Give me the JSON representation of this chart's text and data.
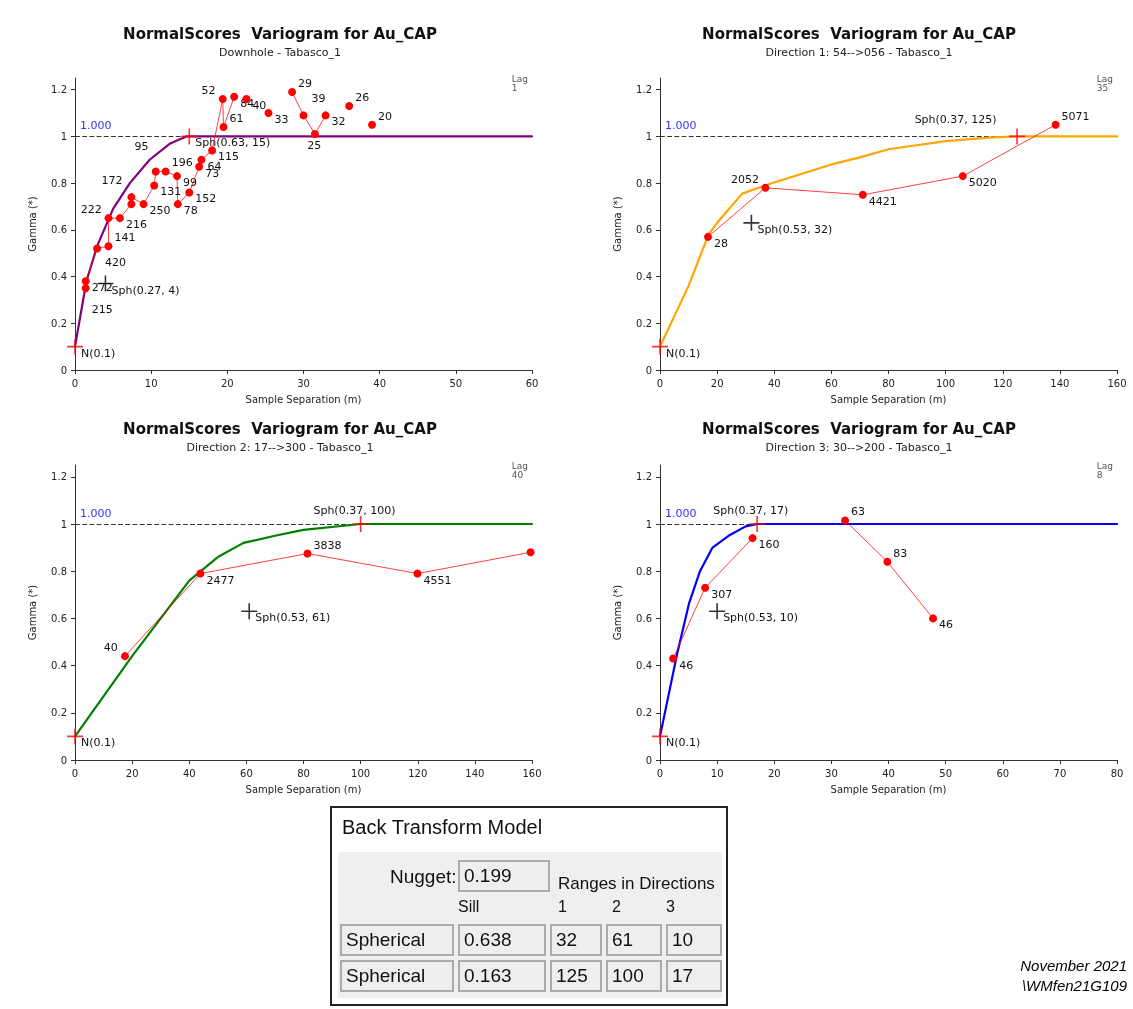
{
  "chart_data": [
    {
      "type": "line",
      "title": "NormalScores  Variogram for Au_CAP",
      "subtitle": "Downhole - Tabasco_1",
      "xlabel": "Sample Separation (m)",
      "ylabel": "Gamma (*)",
      "xlim": [
        0,
        60
      ],
      "xticks": [
        0,
        10,
        20,
        30,
        40,
        50,
        60
      ],
      "ylim": [
        0,
        1.25
      ],
      "yticks": [
        0,
        0.2,
        0.4,
        0.6,
        0.8,
        1.0,
        1.2
      ],
      "series": [
        {
          "type": "line",
          "color": "#ff0000",
          "marker": "circle",
          "x": [
            1.4,
            1.4,
            2.9,
            4.4,
            4.4,
            5.9,
            7.4,
            7.4,
            9.0,
            10.4,
            10.6,
            11.9,
            13.4,
            13.5,
            15.0,
            16.3,
            16.6,
            18.0,
            19.4,
            19.5,
            20.9,
            21.7,
            22.5,
            24.0,
            25.4,
            27.0,
            28.5,
            30.0,
            31.5,
            32.9,
            34.5,
            36.0,
            37.5,
            39.0
          ],
          "values": [
            0.35,
            0.38,
            0.52,
            0.53,
            0.65,
            0.65,
            0.71,
            0.74,
            0.71,
            0.79,
            0.85,
            0.85,
            0.83,
            0.71,
            0.76,
            0.87,
            0.9,
            0.94,
            1.16,
            1.04,
            1.17,
            null,
            1.16,
            null,
            1.1,
            null,
            1.19,
            1.09,
            1.01,
            1.09,
            null,
            1.13,
            null,
            1.05
          ]
        },
        {
          "type": "line",
          "color": "#800080",
          "marker": "none",
          "x": [
            0,
            1.5,
            2.9,
            5.0,
            7.2,
            9.8,
            12.5,
            14.6,
            15,
            60
          ],
          "values": [
            0.1,
            0.38,
            0.53,
            0.69,
            0.8,
            0.9,
            0.97,
            1.0,
            1.0,
            1.0
          ]
        },
        {
          "type": "scatter",
          "color": "#ff0000",
          "marker": "cross",
          "x": [
            0,
            15
          ],
          "values": [
            0.1,
            1.0
          ]
        },
        {
          "type": "scatter",
          "color": "#000000",
          "marker": "cross",
          "x": [
            4
          ],
          "values": [
            0.37
          ]
        }
      ],
      "ref_lines": [
        {
          "axis": "y",
          "value": 1.0,
          "label": "1.000",
          "color": "#333333",
          "line_style": "dashed"
        }
      ],
      "annotations": [
        "Lag\n1",
        {
          "text": "N(0.1)",
          "x": 0,
          "y": 0.1
        },
        {
          "text": "Sph(0.27, 4)",
          "x": 4,
          "y": 0.37
        },
        {
          "text": "Sph(0.63, 15)",
          "x": 15,
          "y": 1.0
        },
        {
          "text": "215",
          "x": 1.4,
          "y": 0.35
        },
        {
          "text": "272",
          "x": 1.4,
          "y": 0.38
        },
        {
          "text": "420",
          "x": 2.9,
          "y": 0.52
        },
        {
          "text": "141",
          "x": 4.4,
          "y": 0.53
        },
        {
          "text": "222",
          "x": 4.4,
          "y": 0.65
        },
        {
          "text": "216",
          "x": 5.9,
          "y": 0.65
        },
        {
          "text": "172",
          "x": 7.4,
          "y": 0.74
        },
        {
          "text": "250",
          "x": 9.0,
          "y": 0.71
        },
        {
          "text": "131",
          "x": 10.4,
          "y": 0.79
        },
        {
          "text": "95",
          "x": 10.6,
          "y": 0.85
        },
        {
          "text": "196",
          "x": 11.9,
          "y": 0.85
        },
        {
          "text": "99",
          "x": 13.4,
          "y": 0.83
        },
        {
          "text": "78",
          "x": 13.5,
          "y": 0.71
        },
        {
          "text": "152",
          "x": 15.0,
          "y": 0.76
        },
        {
          "text": "73",
          "x": 16.3,
          "y": 0.87
        },
        {
          "text": "64",
          "x": 16.6,
          "y": 0.9
        },
        {
          "text": "115",
          "x": 18.0,
          "y": 0.94
        },
        {
          "text": "52",
          "x": 19.4,
          "y": 1.16
        },
        {
          "text": "61",
          "x": 19.5,
          "y": 1.04
        },
        {
          "text": "84",
          "x": 20.9,
          "y": 1.17
        },
        {
          "text": "40",
          "x": 22.5,
          "y": 1.16
        },
        {
          "text": "33",
          "x": 25.4,
          "y": 1.1
        },
        {
          "text": "29",
          "x": 28.5,
          "y": 1.19
        },
        {
          "text": "39",
          "x": 30.0,
          "y": 1.09
        },
        {
          "text": "25",
          "x": 31.5,
          "y": 1.01
        },
        {
          "text": "32",
          "x": 32.9,
          "y": 1.09
        },
        {
          "text": "26",
          "x": 36.0,
          "y": 1.13
        },
        {
          "text": "20",
          "x": 39.0,
          "y": 1.05
        }
      ]
    },
    {
      "type": "line",
      "title": "NormalScores  Variogram for Au_CAP",
      "subtitle": "Direction 1: 54-->056 - Tabasco_1",
      "xlabel": "Sample Separation (m)",
      "ylabel": "Gamma (*)",
      "xlim": [
        0,
        160
      ],
      "xticks": [
        0,
        20,
        40,
        60,
        80,
        100,
        120,
        140,
        160
      ],
      "ylim": [
        0,
        1.25
      ],
      "yticks": [
        0,
        0.2,
        0.4,
        0.6,
        0.8,
        1.0,
        1.2
      ],
      "series": [
        {
          "type": "line",
          "color": "#ff0000",
          "marker": "circle",
          "x": [
            16.8,
            36.9,
            71.0,
            106.0,
            138.5
          ],
          "values": [
            0.57,
            0.78,
            0.75,
            0.83,
            1.05
          ]
        },
        {
          "type": "line",
          "color": "#ffa500",
          "marker": "none",
          "x": [
            0,
            10,
            17,
            20,
            28.8,
            38,
            60,
            70,
            80,
            100,
            115,
            125,
            160
          ],
          "values": [
            0.1,
            0.36,
            0.58,
            0.63,
            0.755,
            0.795,
            0.88,
            0.91,
            0.945,
            0.98,
            0.995,
            1.0,
            1.0
          ]
        },
        {
          "type": "scatter",
          "color": "#ff0000",
          "marker": "cross",
          "x": [
            0,
            125
          ],
          "values": [
            0.1,
            1.0
          ]
        },
        {
          "type": "scatter",
          "color": "#000000",
          "marker": "cross",
          "x": [
            32
          ],
          "values": [
            0.63
          ]
        }
      ],
      "ref_lines": [
        {
          "axis": "y",
          "value": 1.0,
          "label": "1.000",
          "color": "#333333",
          "line_style": "dashed"
        }
      ],
      "annotations": [
        "Lag\n35",
        {
          "text": "N(0.1)",
          "x": 0,
          "y": 0.1
        },
        {
          "text": "Sph(0.53, 32)",
          "x": 32,
          "y": 0.63
        },
        {
          "text": "Sph(0.37, 125)",
          "x": 125,
          "y": 1.0
        },
        {
          "text": "28",
          "x": 16.8,
          "y": 0.57
        },
        {
          "text": "2052",
          "x": 36.9,
          "y": 0.78
        },
        {
          "text": "4421",
          "x": 71.0,
          "y": 0.75
        },
        {
          "text": "5020",
          "x": 106.0,
          "y": 0.83
        },
        {
          "text": "5071",
          "x": 138.5,
          "y": 1.05
        }
      ]
    },
    {
      "type": "line",
      "title": "NormalScores  Variogram for Au_CAP",
      "subtitle": "Direction 2: 17-->300 - Tabasco_1",
      "xlabel": "Sample Separation (m)",
      "ylabel": "Gamma (*)",
      "xlim": [
        0,
        160
      ],
      "xticks": [
        0,
        20,
        40,
        60,
        80,
        100,
        120,
        140,
        160
      ],
      "ylim": [
        0,
        1.25
      ],
      "yticks": [
        0,
        0.2,
        0.4,
        0.6,
        0.8,
        1.0,
        1.2
      ],
      "series": [
        {
          "type": "line",
          "color": "#ff0000",
          "marker": "circle",
          "x": [
            17.5,
            43.9,
            81.4,
            119.9,
            159.5
          ],
          "values": [
            0.44,
            0.79,
            0.875,
            0.79,
            0.88
          ]
        },
        {
          "type": "line",
          "color": "#008000",
          "marker": "none",
          "x": [
            0,
            20,
            40,
            50,
            59,
            70,
            80,
            100,
            160
          ],
          "values": [
            0.1,
            0.44,
            0.76,
            0.86,
            0.92,
            0.95,
            0.975,
            1.0,
            1.0
          ]
        },
        {
          "type": "scatter",
          "color": "#ff0000",
          "marker": "cross",
          "x": [
            0,
            100
          ],
          "values": [
            0.1,
            1.0
          ]
        },
        {
          "type": "scatter",
          "color": "#000000",
          "marker": "cross",
          "x": [
            61
          ],
          "values": [
            0.63
          ]
        }
      ],
      "ref_lines": [
        {
          "axis": "y",
          "value": 1.0,
          "label": "1.000",
          "color": "#333333",
          "line_style": "dashed"
        }
      ],
      "annotations": [
        "Lag\n40",
        {
          "text": "N(0.1)",
          "x": 0,
          "y": 0.1
        },
        {
          "text": "Sph(0.53, 61)",
          "x": 61,
          "y": 0.63
        },
        {
          "text": "Sph(0.37, 100)",
          "x": 100,
          "y": 1.0
        },
        {
          "text": "40",
          "x": 17.5,
          "y": 0.44
        },
        {
          "text": "2477",
          "x": 43.9,
          "y": 0.79
        },
        {
          "text": "3838",
          "x": 81.4,
          "y": 0.875
        },
        {
          "text": "4551",
          "x": 119.9,
          "y": 0.79
        }
      ]
    },
    {
      "type": "line",
      "title": "NormalScores  Variogram for Au_CAP",
      "subtitle": "Direction 3: 30-->200 - Tabasco_1",
      "xlabel": "Sample Separation (m)",
      "ylabel": "Gamma (*)",
      "xlim": [
        0,
        80
      ],
      "xticks": [
        0,
        10,
        20,
        30,
        40,
        50,
        60,
        70,
        80
      ],
      "ylim": [
        0,
        1.25
      ],
      "yticks": [
        0,
        0.2,
        0.4,
        0.6,
        0.8,
        1.0,
        1.2
      ],
      "series": [
        {
          "type": "line",
          "color": "#ff0000",
          "marker": "circle",
          "x": [
            2.3,
            7.9,
            16.2,
            24,
            32.4,
            39.8,
            47.8
          ],
          "values": [
            0.43,
            0.73,
            0.94,
            null,
            1.015,
            0.84,
            0.6
          ]
        },
        {
          "type": "line",
          "color": "#0000ff",
          "marker": "none",
          "x": [
            0,
            3,
            5.1,
            7,
            9.2,
            12,
            15,
            17,
            80
          ],
          "values": [
            0.1,
            0.45,
            0.665,
            0.8,
            0.9,
            0.95,
            0.99,
            1.0,
            1.0
          ]
        },
        {
          "type": "scatter",
          "color": "#ff0000",
          "marker": "cross",
          "x": [
            0,
            17
          ],
          "values": [
            0.1,
            1.0
          ]
        },
        {
          "type": "scatter",
          "color": "#000000",
          "marker": "cross",
          "x": [
            10
          ],
          "values": [
            0.63
          ]
        }
      ],
      "ref_lines": [
        {
          "axis": "y",
          "value": 1.0,
          "label": "1.000",
          "color": "#333333",
          "line_style": "dashed"
        }
      ],
      "annotations": [
        "Lag\n8",
        {
          "text": "N(0.1)",
          "x": 0,
          "y": 0.1
        },
        {
          "text": "Sph(0.53, 10)",
          "x": 10,
          "y": 0.63
        },
        {
          "text": "Sph(0.37, 17)",
          "x": 17,
          "y": 1.0
        },
        {
          "text": "46",
          "x": 2.3,
          "y": 0.43
        },
        {
          "text": "307",
          "x": 7.9,
          "y": 0.73
        },
        {
          "text": "160",
          "x": 16.2,
          "y": 0.94
        },
        {
          "text": "63",
          "x": 32.4,
          "y": 1.015
        },
        {
          "text": "83",
          "x": 39.8,
          "y": 0.84
        },
        {
          "text": "46",
          "x": 47.8,
          "y": 0.6
        }
      ]
    },
    {
      "type": "other",
      "title": "Back Transform Model",
      "annotations": [
        "Nugget:",
        "0.199",
        "Ranges in Directions",
        "Sill",
        "1",
        "2",
        "3",
        "Spherical",
        "0.638",
        "32",
        "61",
        "10",
        "Spherical",
        "0.163",
        "125",
        "100",
        "17",
        "November 2021",
        "\\WMfen21G109"
      ]
    }
  ]
}
